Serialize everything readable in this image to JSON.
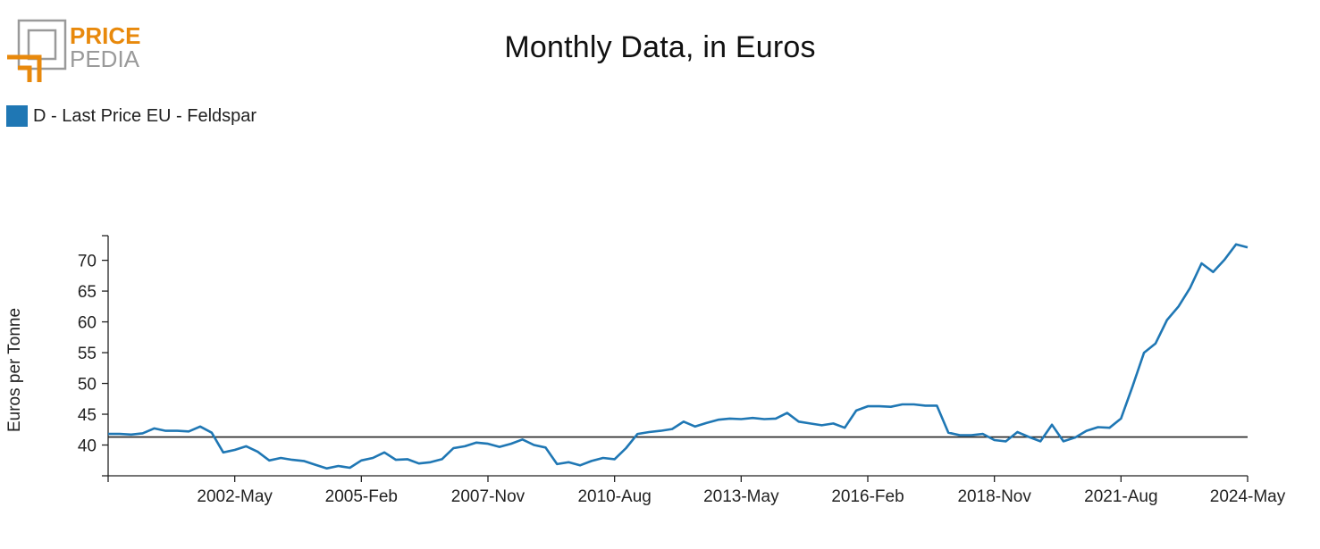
{
  "logo": {
    "brand_top": "PRICE",
    "brand_bottom": "PEDIA",
    "accent": "#e8890c",
    "gray": "#9a9a9a"
  },
  "chart_data": {
    "type": "line",
    "title": "Monthly Data, in Euros",
    "xlabel": "",
    "ylabel": "Euros per Tonne",
    "x_ticks": [
      "2002-May",
      "2005-Feb",
      "2007-Nov",
      "2010-Aug",
      "2013-May",
      "2016-Feb",
      "2018-Nov",
      "2021-Aug",
      "2024-May"
    ],
    "y_ticks": [
      40,
      45,
      50,
      55,
      60,
      65,
      70
    ],
    "x_range": [
      "1999-Aug",
      "2024-May"
    ],
    "ylim": [
      35,
      74
    ],
    "reference_line": 41.3,
    "grid": false,
    "legend_position": "top-left",
    "series": [
      {
        "name": "D - Last Price EU - Feldspar",
        "color": "#1f77b4",
        "points": [
          [
            "1999-Aug",
            41.8
          ],
          [
            "1999-Nov",
            41.8
          ],
          [
            "2000-Feb",
            41.7
          ],
          [
            "2000-May",
            41.9
          ],
          [
            "2000-Aug",
            42.7
          ],
          [
            "2000-Nov",
            42.3
          ],
          [
            "2001-Feb",
            42.3
          ],
          [
            "2001-May",
            42.2
          ],
          [
            "2001-Aug",
            43.0
          ],
          [
            "2001-Nov",
            42.0
          ],
          [
            "2002-Feb",
            38.8
          ],
          [
            "2002-May",
            39.2
          ],
          [
            "2002-Aug",
            39.8
          ],
          [
            "2002-Nov",
            38.9
          ],
          [
            "2003-Feb",
            37.5
          ],
          [
            "2003-May",
            37.9
          ],
          [
            "2003-Aug",
            37.6
          ],
          [
            "2003-Nov",
            37.4
          ],
          [
            "2004-Feb",
            36.8
          ],
          [
            "2004-May",
            36.2
          ],
          [
            "2004-Aug",
            36.6
          ],
          [
            "2004-Nov",
            36.3
          ],
          [
            "2005-Feb",
            37.5
          ],
          [
            "2005-May",
            37.9
          ],
          [
            "2005-Aug",
            38.8
          ],
          [
            "2005-Nov",
            37.6
          ],
          [
            "2006-Feb",
            37.7
          ],
          [
            "2006-May",
            37.0
          ],
          [
            "2006-Aug",
            37.2
          ],
          [
            "2006-Nov",
            37.7
          ],
          [
            "2007-Feb",
            39.5
          ],
          [
            "2007-May",
            39.8
          ],
          [
            "2007-Aug",
            40.4
          ],
          [
            "2007-Nov",
            40.2
          ],
          [
            "2008-Feb",
            39.7
          ],
          [
            "2008-May",
            40.2
          ],
          [
            "2008-Aug",
            40.9
          ],
          [
            "2008-Nov",
            40.0
          ],
          [
            "2009-Feb",
            39.6
          ],
          [
            "2009-May",
            36.9
          ],
          [
            "2009-Aug",
            37.2
          ],
          [
            "2009-Nov",
            36.7
          ],
          [
            "2010-Feb",
            37.4
          ],
          [
            "2010-May",
            37.9
          ],
          [
            "2010-Aug",
            37.7
          ],
          [
            "2010-Nov",
            39.5
          ],
          [
            "2011-Feb",
            41.8
          ],
          [
            "2011-May",
            42.1
          ],
          [
            "2011-Aug",
            42.3
          ],
          [
            "2011-Nov",
            42.6
          ],
          [
            "2012-Feb",
            43.8
          ],
          [
            "2012-May",
            43.0
          ],
          [
            "2012-Aug",
            43.6
          ],
          [
            "2012-Nov",
            44.1
          ],
          [
            "2013-Feb",
            44.3
          ],
          [
            "2013-May",
            44.2
          ],
          [
            "2013-Aug",
            44.4
          ],
          [
            "2013-Nov",
            44.2
          ],
          [
            "2014-Feb",
            44.3
          ],
          [
            "2014-May",
            45.2
          ],
          [
            "2014-Aug",
            43.8
          ],
          [
            "2014-Nov",
            43.5
          ],
          [
            "2015-Feb",
            43.2
          ],
          [
            "2015-May",
            43.5
          ],
          [
            "2015-Aug",
            42.8
          ],
          [
            "2015-Nov",
            45.6
          ],
          [
            "2016-Feb",
            46.3
          ],
          [
            "2016-May",
            46.3
          ],
          [
            "2016-Aug",
            46.2
          ],
          [
            "2016-Nov",
            46.6
          ],
          [
            "2017-Feb",
            46.6
          ],
          [
            "2017-May",
            46.4
          ],
          [
            "2017-Aug",
            46.4
          ],
          [
            "2017-Nov",
            42.0
          ],
          [
            "2018-Feb",
            41.6
          ],
          [
            "2018-May",
            41.6
          ],
          [
            "2018-Aug",
            41.8
          ],
          [
            "2018-Nov",
            40.8
          ],
          [
            "2019-Feb",
            40.6
          ],
          [
            "2019-May",
            42.1
          ],
          [
            "2019-Aug",
            41.3
          ],
          [
            "2019-Nov",
            40.6
          ],
          [
            "2020-Feb",
            43.3
          ],
          [
            "2020-May",
            40.6
          ],
          [
            "2020-Aug",
            41.2
          ],
          [
            "2020-Nov",
            42.3
          ],
          [
            "2021-Feb",
            42.9
          ],
          [
            "2021-May",
            42.8
          ],
          [
            "2021-Aug",
            44.3
          ],
          [
            "2021-Nov",
            49.5
          ],
          [
            "2022-Feb",
            55.0
          ],
          [
            "2022-May",
            56.5
          ],
          [
            "2022-Aug",
            60.3
          ],
          [
            "2022-Nov",
            62.5
          ],
          [
            "2023-Feb",
            65.5
          ],
          [
            "2023-May",
            69.5
          ],
          [
            "2023-Aug",
            68.1
          ],
          [
            "2023-Nov",
            70.1
          ],
          [
            "2024-Feb",
            72.6
          ],
          [
            "2024-May",
            72.1
          ]
        ]
      }
    ]
  }
}
